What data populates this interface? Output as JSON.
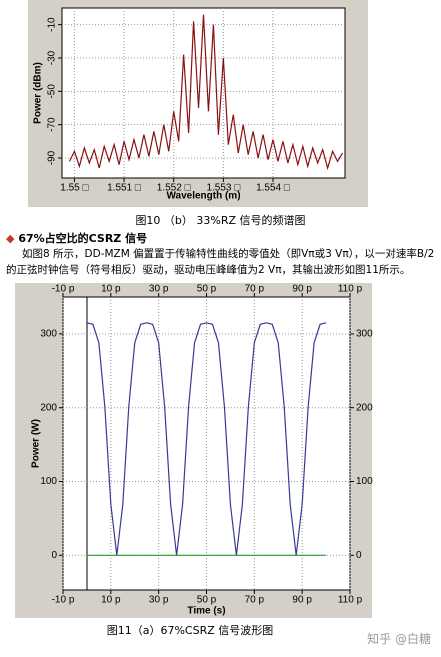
{
  "chart_data": [
    {
      "type": "line",
      "y_label": "Power (dBm)",
      "x_label": "Wavelength (m)",
      "x": [
        1.5499,
        1.55,
        1.5501,
        1.5502,
        1.5503,
        1.5504,
        1.5505,
        1.5506,
        1.5507,
        1.5508,
        1.5509,
        1.551,
        1.5511,
        1.5512,
        1.5513,
        1.5514,
        1.5515,
        1.5516,
        1.5517,
        1.5518,
        1.5519,
        1.552,
        1.5521,
        1.5522,
        1.5523,
        1.5524,
        1.5525,
        1.5526,
        1.5527,
        1.5528,
        1.5529,
        1.553,
        1.5531,
        1.5532,
        1.5533,
        1.5534,
        1.5535,
        1.5536,
        1.5537,
        1.5538,
        1.5539,
        1.554,
        1.5541,
        1.5542,
        1.5543,
        1.5544,
        1.5545,
        1.5546,
        1.5547,
        1.5548,
        1.5549,
        1.555,
        1.5551,
        1.5552,
        1.5553,
        1.5554
      ],
      "series": [
        {
          "color": "#8b1010",
          "values": [
            -92,
            -86,
            -95,
            -84,
            -93,
            -85,
            -96,
            -83,
            -92,
            -82,
            -94,
            -80,
            -91,
            -79,
            -90,
            -76,
            -89,
            -74,
            -88,
            -70,
            -86,
            -62,
            -80,
            -28,
            -75,
            -8,
            -60,
            -4,
            -62,
            -10,
            -76,
            -30,
            -82,
            -64,
            -87,
            -70,
            -88,
            -74,
            -90,
            -76,
            -91,
            -79,
            -92,
            -80,
            -93,
            -82,
            -94,
            -83,
            -95,
            -84,
            -93,
            -85,
            -96,
            -86,
            -92,
            -87
          ]
        }
      ],
      "xlim": [
        1.54975,
        1.55545
      ],
      "ylim": [
        -102,
        0
      ],
      "xticks": [
        {
          "value": 1.55,
          "label": "1.55 □"
        },
        {
          "value": 1.551,
          "label": "1.551 □"
        },
        {
          "value": 1.552,
          "label": "1.552 □"
        },
        {
          "value": 1.553,
          "label": "1.553 □"
        },
        {
          "value": 1.554,
          "label": "1.554 □"
        }
      ],
      "yticks": [
        -90,
        -70,
        -50,
        -30,
        -10
      ],
      "grid": true
    },
    {
      "type": "line",
      "y_label": "Power (W)",
      "x_label": "Time (s)",
      "x": [
        0,
        2.5,
        5,
        7.5,
        10,
        12.5,
        15,
        17.5,
        20,
        22.5,
        25,
        27.5,
        30,
        32.5,
        35,
        37.5,
        40,
        42.5,
        45,
        47.5,
        50,
        52.5,
        55,
        57.5,
        60,
        62.5,
        65,
        67.5,
        70,
        72.5,
        75,
        77.5,
        80,
        82.5,
        85,
        87.5,
        90,
        92.5,
        95,
        97.5,
        100
      ],
      "series": [
        {
          "color": "#3a3a96",
          "values": [
            315,
            313,
            288,
            201,
            69,
            0,
            69,
            201,
            288,
            313,
            315,
            313,
            288,
            201,
            69,
            0,
            69,
            201,
            288,
            313,
            315,
            313,
            288,
            201,
            69,
            0,
            69,
            201,
            288,
            313,
            315,
            313,
            288,
            201,
            69,
            0,
            69,
            201,
            288,
            313,
            315
          ]
        },
        {
          "color": "#2e9e2e",
          "values": [
            0,
            0,
            0,
            0,
            0,
            0,
            0,
            0,
            0,
            0,
            0,
            0,
            0,
            0,
            0,
            0,
            0,
            0,
            0,
            0,
            0,
            0,
            0,
            0,
            0,
            0,
            0,
            0,
            0,
            0,
            0,
            0,
            0,
            0,
            0,
            0,
            0,
            0,
            0,
            0,
            0
          ]
        }
      ],
      "xlim": [
        -10,
        110
      ],
      "ylim": [
        -47,
        350
      ],
      "xticks": [
        {
          "value": -10,
          "label": "-10 p"
        },
        {
          "value": 10,
          "label": "10 p"
        },
        {
          "value": 30,
          "label": "30 p"
        },
        {
          "value": 50,
          "label": "50 p"
        },
        {
          "value": 70,
          "label": "70 p"
        },
        {
          "value": 90,
          "label": "90 p"
        },
        {
          "value": 110,
          "label": "110 p"
        }
      ],
      "yticks": [
        0,
        100,
        200,
        300
      ],
      "grid": true
    }
  ],
  "document": {
    "caption_1": "图10 （b） 33%RZ 信号的频谱图",
    "heading": "67%占空比的CSRZ 信号",
    "paragraph": "如图8 所示，DD-MZM 偏置置于传输特性曲线的零值处（即Vπ或3 Vπ），以一对速率B/2 的正弦时钟信号（符号相反）驱动，驱动电压峰峰值为2 Vπ，其输出波形如图11所示。",
    "caption_2": "图11（a）67%CSRZ 信号波形图",
    "watermark": "知乎 @白糖"
  }
}
